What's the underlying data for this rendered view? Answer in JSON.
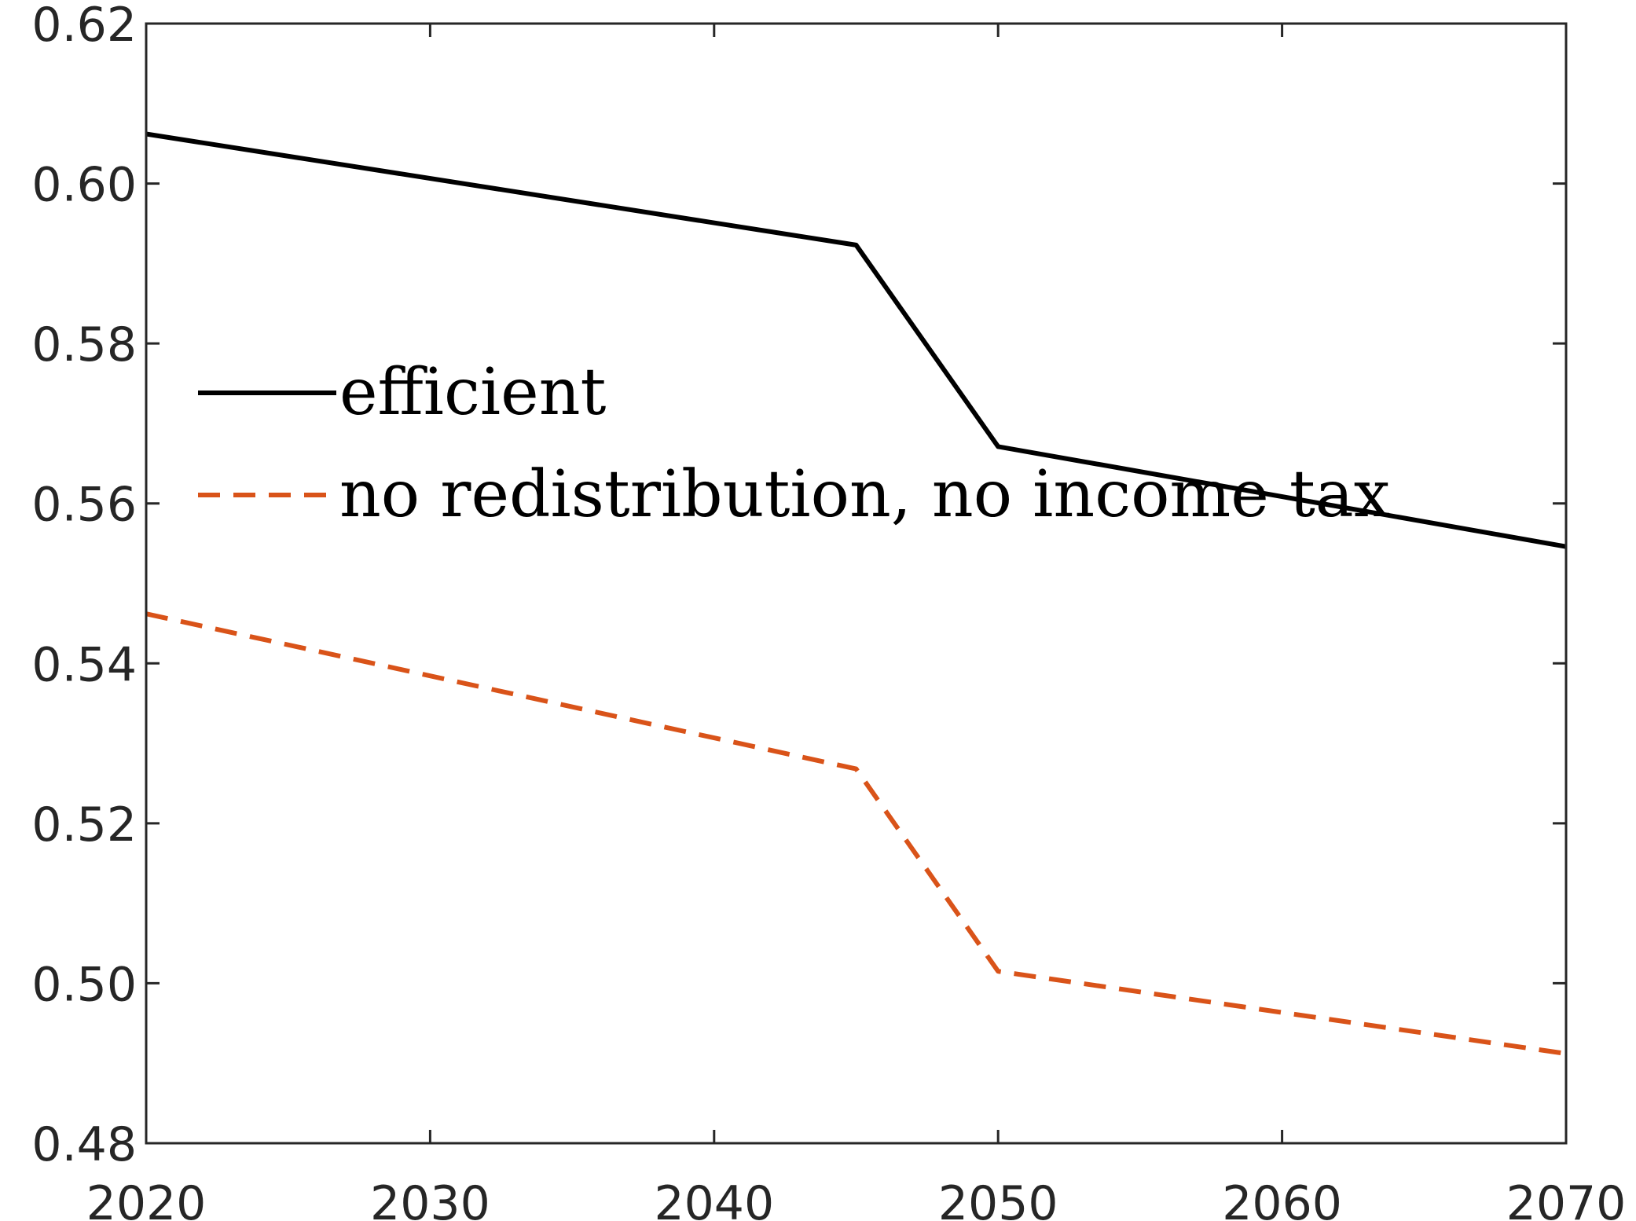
{
  "chart_data": {
    "type": "line",
    "title": "",
    "xlabel": "",
    "ylabel": "",
    "xlim": [
      2020,
      2070
    ],
    "ylim": [
      0.48,
      0.62
    ],
    "x_ticks": [
      "2020",
      "2030",
      "2040",
      "2050",
      "2060",
      "2070"
    ],
    "y_ticks": [
      "0.48",
      "0.50",
      "0.52",
      "0.54",
      "0.56",
      "0.58",
      "0.60",
      "0.62"
    ],
    "grid": false,
    "legend_position": "left",
    "series": [
      {
        "name": "efficient",
        "style": "solid",
        "color": "#000000",
        "x": [
          2020,
          2045,
          2050,
          2070
        ],
        "y": [
          0.6062,
          0.5923,
          0.5671,
          0.5546
        ]
      },
      {
        "name": "no redistribution, no income tax",
        "style": "dashed",
        "color": "#D95319",
        "x": [
          2020,
          2045,
          2050,
          2070
        ],
        "y": [
          0.5462,
          0.5268,
          0.5015,
          0.4912
        ]
      }
    ]
  }
}
